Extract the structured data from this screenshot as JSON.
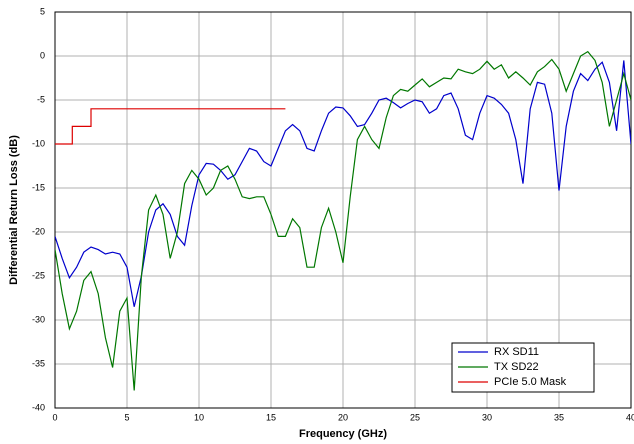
{
  "chart_data": {
    "type": "line",
    "xlabel": "Frequency (GHz)",
    "ylabel": "Differential Return Loss (dB)",
    "xlim": [
      0,
      40
    ],
    "ylim": [
      -40,
      5
    ],
    "xticks": [
      0,
      5,
      10,
      15,
      20,
      25,
      30,
      35,
      40
    ],
    "yticks": [
      -40,
      -35,
      -30,
      -25,
      -20,
      -15,
      -10,
      -5,
      0,
      5
    ],
    "grid": true,
    "legend": "lower right",
    "x": [
      0,
      0.5,
      1,
      1.5,
      2,
      2.5,
      3,
      3.5,
      4,
      4.5,
      5,
      5.5,
      6,
      6.5,
      7,
      7.5,
      8,
      8.5,
      9,
      9.5,
      10,
      10.5,
      11,
      11.5,
      12,
      12.5,
      13,
      13.5,
      14,
      14.5,
      15,
      15.5,
      16,
      16.5,
      17,
      17.5,
      18,
      18.5,
      19,
      19.5,
      20,
      20.5,
      21,
      21.5,
      22,
      22.5,
      23,
      23.5,
      24,
      24.5,
      25,
      25.5,
      26,
      26.5,
      27,
      27.5,
      28,
      28.5,
      29,
      29.5,
      30,
      30.5,
      31,
      31.5,
      32,
      32.5,
      33,
      33.5,
      34,
      34.5,
      35,
      35.5,
      36,
      36.5,
      37,
      37.5,
      38,
      38.5,
      39,
      39.5,
      40
    ],
    "series": [
      {
        "name": "RX SD11",
        "color": "#0000cc",
        "values": [
          -20.5,
          -23,
          -25.2,
          -24,
          -22.3,
          -21.7,
          -22,
          -22.5,
          -22.3,
          -22.5,
          -24,
          -28.5,
          -25,
          -20,
          -17.5,
          -16.8,
          -18,
          -20.5,
          -21.5,
          -17,
          -13.5,
          -12.2,
          -12.3,
          -13,
          -14,
          -13.5,
          -12,
          -10.5,
          -10.8,
          -12,
          -12.5,
          -10.5,
          -8.5,
          -7.8,
          -8.5,
          -10.5,
          -10.8,
          -8.5,
          -6.5,
          -5.8,
          -5.9,
          -6.8,
          -8,
          -7.8,
          -6.5,
          -5,
          -4.8,
          -5.3,
          -5.9,
          -5.4,
          -5,
          -5.2,
          -6.5,
          -6,
          -4.5,
          -4.2,
          -6,
          -9,
          -9.5,
          -6.5,
          -4.5,
          -4.8,
          -5.5,
          -6.5,
          -9.5,
          -14.5,
          -6,
          -3,
          -3.2,
          -6.5,
          -15.3,
          -8,
          -4,
          -2,
          -2.8,
          -1.5,
          -0.7,
          -3,
          -8.5,
          -0.5,
          -10
        ]
      },
      {
        "name": "TX SD22",
        "color": "#007700",
        "values": [
          -22,
          -27,
          -31,
          -29,
          -25.5,
          -24.5,
          -27,
          -32,
          -35.4,
          -29,
          -27.5,
          -38,
          -25,
          -17.5,
          -15.8,
          -18,
          -23,
          -20,
          -14.5,
          -13,
          -14,
          -15.8,
          -15,
          -13,
          -12.5,
          -14,
          -16,
          -16.2,
          -16,
          -16,
          -18,
          -20.5,
          -20.5,
          -18.5,
          -19.5,
          -24,
          -24,
          -19.5,
          -17.3,
          -20,
          -23.5,
          -16,
          -9.5,
          -8,
          -9.5,
          -10.5,
          -7,
          -4.5,
          -3.8,
          -4,
          -3.3,
          -2.6,
          -3.5,
          -3,
          -2.5,
          -2.6,
          -1.5,
          -1.8,
          -2,
          -1.5,
          -0.6,
          -1.5,
          -1,
          -2.5,
          -1.8,
          -2.5,
          -3.3,
          -1.8,
          -1.2,
          -0.4,
          -1.5,
          -4,
          -2,
          0,
          0.5,
          -0.5,
          -3,
          -8,
          -5,
          -2,
          -5
        ]
      },
      {
        "name": "PCIe 5.0 Mask",
        "color": "#dd0000",
        "x": [
          0,
          1.2,
          1.2,
          2.5,
          2.5,
          16
        ],
        "values": [
          -10,
          -10,
          -8,
          -8,
          -6,
          -6
        ]
      }
    ]
  }
}
